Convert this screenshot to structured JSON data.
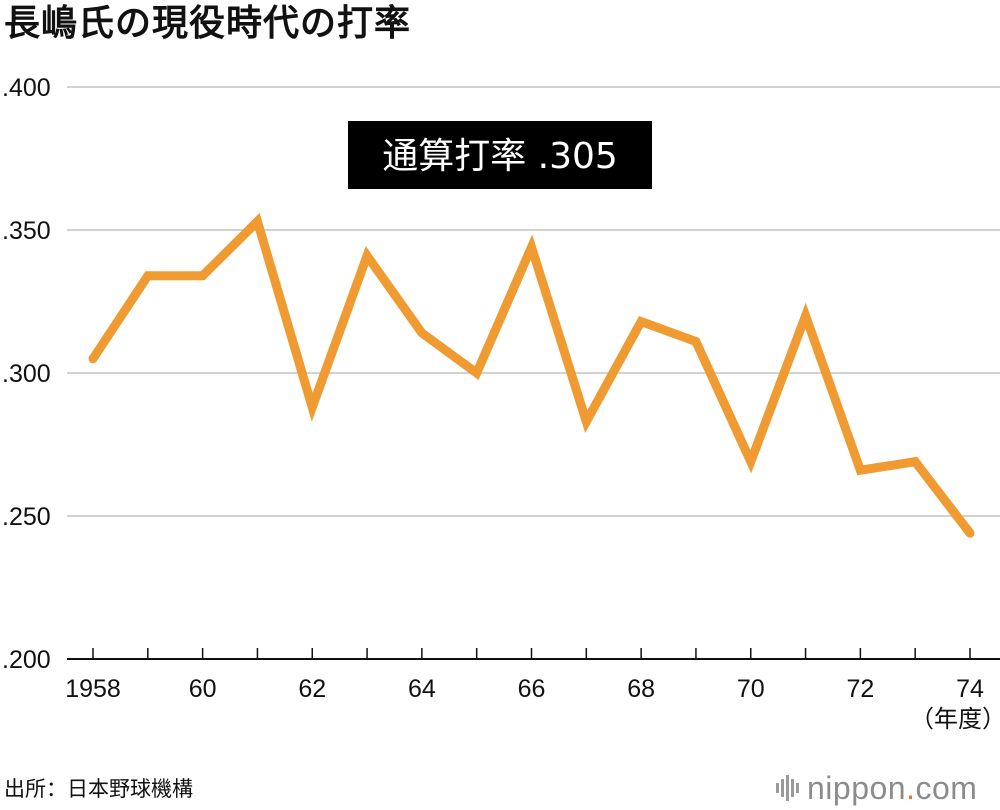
{
  "title": "長嶋氏の現役時代の打率",
  "source": "出所：日本野球機構",
  "brand": {
    "name": "nippon",
    "dot": ".",
    "tld": "com",
    "dot_color": "#e8731c"
  },
  "chart_data": {
    "type": "line",
    "title": "長嶋氏の現役時代の打率",
    "xlabel": "（年度）",
    "ylabel": "",
    "x": [
      1958,
      1959,
      1960,
      1961,
      1962,
      1963,
      1964,
      1965,
      1966,
      1967,
      1968,
      1969,
      1970,
      1971,
      1972,
      1973,
      1974
    ],
    "series": [
      {
        "name": "打率",
        "color": "#f09a32",
        "values": [
          0.305,
          0.334,
          0.334,
          0.353,
          0.288,
          0.341,
          0.314,
          0.3,
          0.344,
          0.283,
          0.318,
          0.311,
          0.269,
          0.32,
          0.266,
          0.269,
          0.244
        ]
      }
    ],
    "ylim": [
      0.2,
      0.4
    ],
    "yticks": [
      ".400",
      ".350",
      ".300",
      ".250",
      ".200"
    ],
    "ytick_values": [
      0.4,
      0.35,
      0.3,
      0.25,
      0.2
    ],
    "xtick_labels": [
      "1958",
      "60",
      "62",
      "64",
      "66",
      "68",
      "70",
      "72",
      "74"
    ],
    "xtick_values": [
      1958,
      1960,
      1962,
      1964,
      1966,
      1968,
      1970,
      1972,
      1974
    ],
    "grid": true,
    "annotation": "通算打率 .305"
  }
}
